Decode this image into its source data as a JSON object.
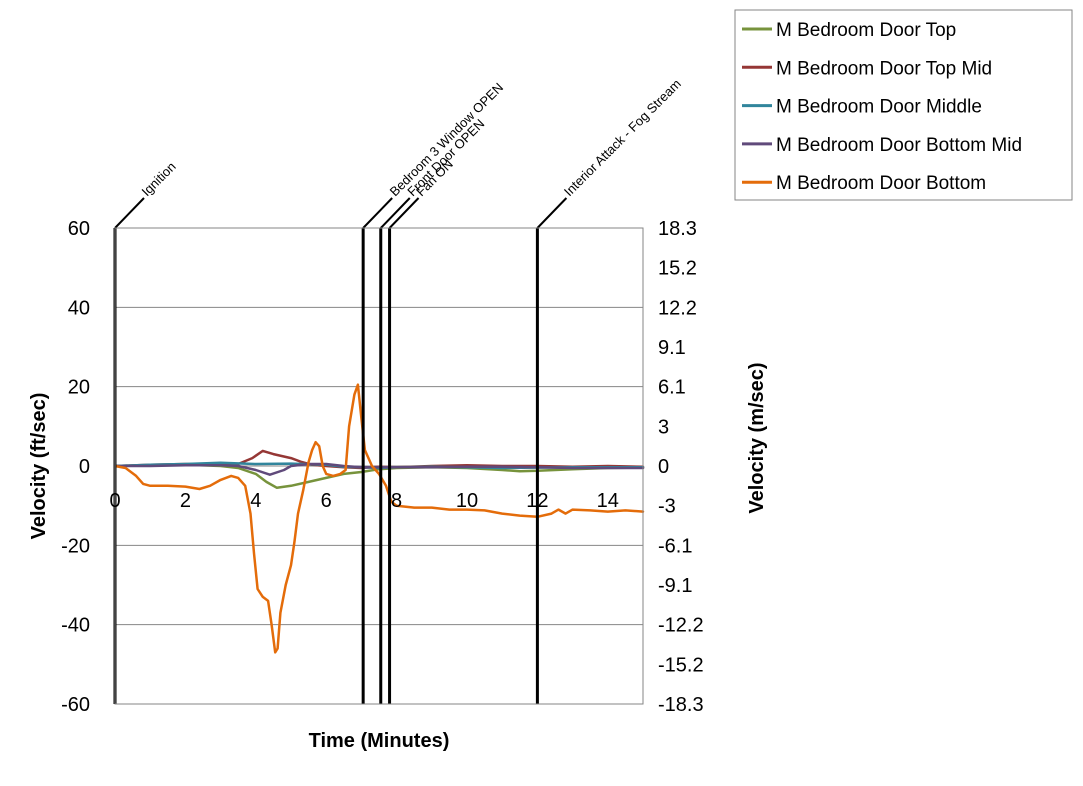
{
  "chart_data": {
    "type": "line",
    "xlabel": "Time (Minutes)",
    "ylabel": "Velocity (ft/sec)",
    "y2label": "Velocity (m/sec)",
    "xlim": [
      0,
      15
    ],
    "ylim": [
      -60,
      60
    ],
    "x_ticks": [
      "0",
      "2",
      "4",
      "6",
      "8",
      "10",
      "12",
      "14"
    ],
    "y_ticks": [
      "60",
      "40",
      "20",
      "0",
      "-20",
      "-40",
      "-60"
    ],
    "y2_ticks": [
      "18.3",
      "15.2",
      "12.2",
      "9.1",
      "6.1",
      "3",
      "0",
      "-3",
      "-6.1",
      "-9.1",
      "-12.2",
      "-15.2",
      "-18.3"
    ],
    "grid": "horizontal",
    "legend_position": "top-right",
    "events": [
      {
        "label": "Ignition",
        "x": 0
      },
      {
        "label": "Bedroom 3 Window OPEN",
        "x": 7.05
      },
      {
        "label": "Front Door OPEN",
        "x": 7.55
      },
      {
        "label": "Fan ON",
        "x": 7.8
      },
      {
        "label": "Interior Attack - Fog Stream",
        "x": 12.0
      }
    ],
    "series": [
      {
        "name": "M Bedroom Door Top",
        "color": "#77933c",
        "points": [
          [
            0,
            0
          ],
          [
            1,
            0.2
          ],
          [
            2,
            0.3
          ],
          [
            3,
            0
          ],
          [
            3.5,
            -0.5
          ],
          [
            4,
            -2
          ],
          [
            4.3,
            -4
          ],
          [
            4.6,
            -5.5
          ],
          [
            5,
            -5
          ],
          [
            5.5,
            -4
          ],
          [
            6,
            -3
          ],
          [
            6.5,
            -2
          ],
          [
            7,
            -1.5
          ],
          [
            7.5,
            -0.8
          ],
          [
            8,
            -0.5
          ],
          [
            9,
            -0.3
          ],
          [
            10,
            -0.5
          ],
          [
            11,
            -1
          ],
          [
            11.5,
            -1.3
          ],
          [
            12,
            -1.2
          ],
          [
            13,
            -0.8
          ],
          [
            14,
            -0.5
          ],
          [
            15,
            -0.4
          ]
        ]
      },
      {
        "name": "M Bedroom Door Top Mid",
        "color": "#953735",
        "points": [
          [
            0,
            0
          ],
          [
            1,
            0.3
          ],
          [
            2,
            0.5
          ],
          [
            3,
            0.3
          ],
          [
            3.5,
            0.5
          ],
          [
            3.9,
            2
          ],
          [
            4.2,
            3.8
          ],
          [
            4.5,
            3
          ],
          [
            5,
            2
          ],
          [
            5.3,
            1
          ],
          [
            5.6,
            0.3
          ],
          [
            6,
            0
          ],
          [
            6.5,
            -0.3
          ],
          [
            7,
            -0.5
          ],
          [
            7.5,
            -0.2
          ],
          [
            8,
            -0.3
          ],
          [
            9,
            0
          ],
          [
            10,
            0.2
          ],
          [
            11,
            0
          ],
          [
            12,
            0
          ],
          [
            13,
            -0.2
          ],
          [
            14,
            0
          ],
          [
            15,
            -0.2
          ]
        ]
      },
      {
        "name": "M Bedroom Door Middle",
        "color": "#31859c",
        "points": [
          [
            0,
            0
          ],
          [
            1,
            0.3
          ],
          [
            2,
            0.5
          ],
          [
            3,
            0.8
          ],
          [
            4,
            0.5
          ],
          [
            5,
            0.6
          ],
          [
            6,
            0.3
          ],
          [
            6.5,
            -0.2
          ],
          [
            7,
            -0.3
          ],
          [
            7.5,
            -0.5
          ],
          [
            8,
            -0.3
          ],
          [
            9,
            -0.2
          ],
          [
            10,
            -0.3
          ],
          [
            11,
            -0.5
          ],
          [
            12,
            -0.4
          ],
          [
            13,
            -0.3
          ],
          [
            14,
            -0.3
          ],
          [
            15,
            -0.3
          ]
        ]
      },
      {
        "name": "M Bedroom Door Bottom Mid",
        "color": "#604a7b",
        "points": [
          [
            0,
            0
          ],
          [
            1,
            0
          ],
          [
            2,
            0.2
          ],
          [
            3,
            0.2
          ],
          [
            3.5,
            0
          ],
          [
            4,
            -1
          ],
          [
            4.4,
            -2.2
          ],
          [
            4.8,
            -1
          ],
          [
            5,
            0
          ],
          [
            5.5,
            0.5
          ],
          [
            6,
            0.5
          ],
          [
            6.5,
            0
          ],
          [
            7,
            -0.3
          ],
          [
            8,
            -0.3
          ],
          [
            9,
            -0.3
          ],
          [
            10,
            -0.2
          ],
          [
            11,
            -0.2
          ],
          [
            12,
            -0.3
          ],
          [
            13,
            -0.5
          ],
          [
            14,
            -0.5
          ],
          [
            15,
            -0.5
          ]
        ]
      },
      {
        "name": "M Bedroom Door Bottom",
        "color": "#e46c0a",
        "points": [
          [
            0,
            0
          ],
          [
            0.3,
            -0.5
          ],
          [
            0.6,
            -2.5
          ],
          [
            0.8,
            -4.5
          ],
          [
            1,
            -5
          ],
          [
            1.5,
            -5
          ],
          [
            2,
            -5.2
          ],
          [
            2.4,
            -5.8
          ],
          [
            2.7,
            -5
          ],
          [
            3,
            -3.5
          ],
          [
            3.3,
            -2.5
          ],
          [
            3.5,
            -3
          ],
          [
            3.7,
            -5
          ],
          [
            3.85,
            -12
          ],
          [
            3.95,
            -22
          ],
          [
            4.05,
            -31
          ],
          [
            4.2,
            -33
          ],
          [
            4.35,
            -34
          ],
          [
            4.45,
            -40
          ],
          [
            4.55,
            -47
          ],
          [
            4.62,
            -46
          ],
          [
            4.7,
            -37
          ],
          [
            4.85,
            -30
          ],
          [
            5,
            -25
          ],
          [
            5.1,
            -19
          ],
          [
            5.2,
            -12
          ],
          [
            5.35,
            -6
          ],
          [
            5.5,
            1
          ],
          [
            5.6,
            4
          ],
          [
            5.7,
            6
          ],
          [
            5.8,
            5
          ],
          [
            5.9,
            0
          ],
          [
            6,
            -2
          ],
          [
            6.2,
            -2.5
          ],
          [
            6.4,
            -2
          ],
          [
            6.55,
            -1
          ],
          [
            6.65,
            10
          ],
          [
            6.8,
            18
          ],
          [
            6.9,
            20.5
          ],
          [
            7.0,
            12
          ],
          [
            7.1,
            4
          ],
          [
            7.3,
            0
          ],
          [
            7.5,
            -2
          ],
          [
            7.7,
            -5
          ],
          [
            7.85,
            -9
          ],
          [
            8,
            -10
          ],
          [
            8.5,
            -10.5
          ],
          [
            9,
            -10.5
          ],
          [
            9.5,
            -11
          ],
          [
            10,
            -11
          ],
          [
            10.5,
            -11.2
          ],
          [
            11,
            -12
          ],
          [
            11.5,
            -12.5
          ],
          [
            12,
            -12.8
          ],
          [
            12.4,
            -12
          ],
          [
            12.6,
            -11
          ],
          [
            12.8,
            -12
          ],
          [
            13,
            -11
          ],
          [
            13.5,
            -11.2
          ],
          [
            14,
            -11.5
          ],
          [
            14.5,
            -11.2
          ],
          [
            15,
            -11.5
          ]
        ]
      }
    ]
  }
}
